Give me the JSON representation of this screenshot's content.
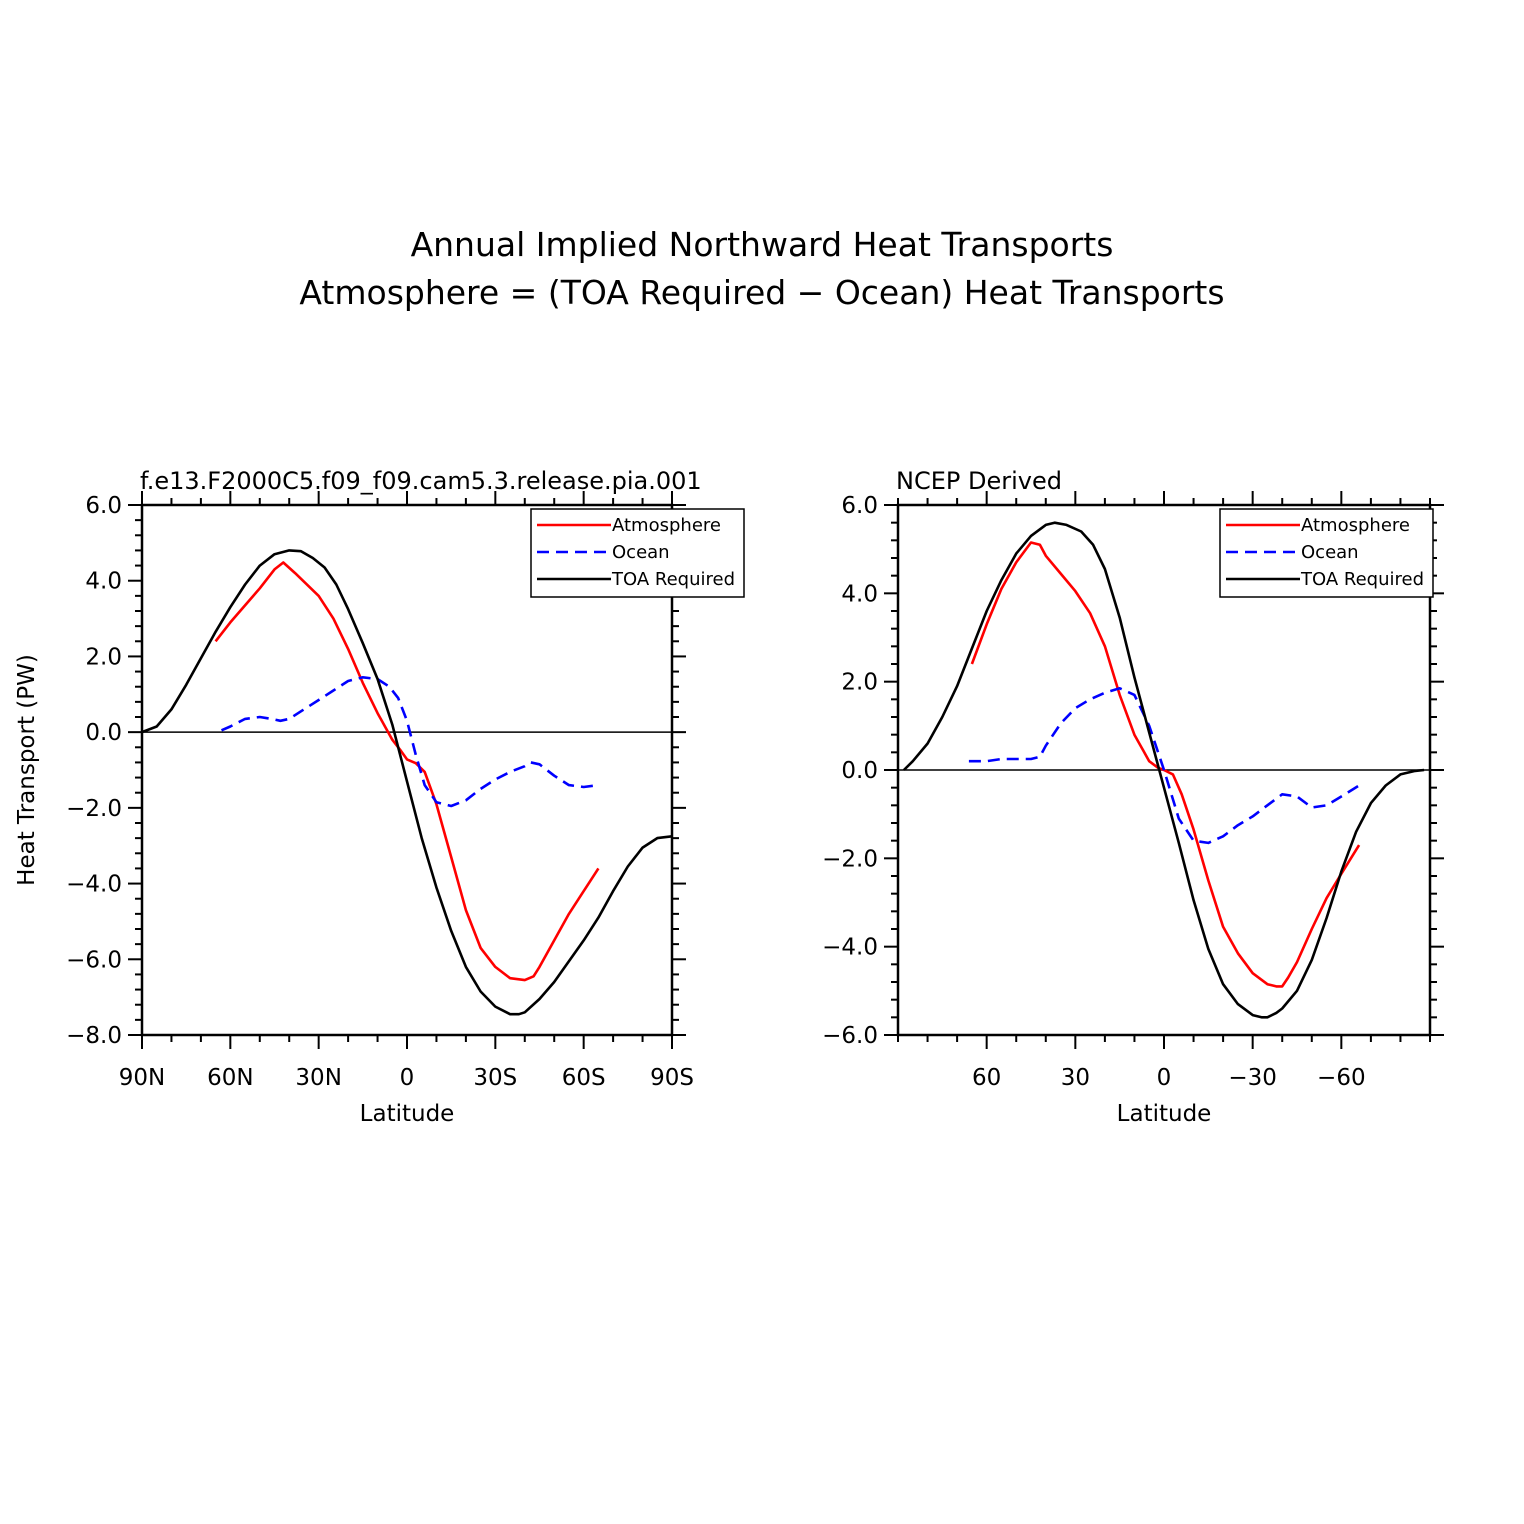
{
  "figure": {
    "title_line1": "Annual Implied Northward Heat Transports",
    "title_line2": "Atmosphere = (TOA Required − Ocean) Heat Transports"
  },
  "chart_data": [
    {
      "type": "line",
      "title": "f.e13.F2000C5.f09_f09.cam5.3.release.pia.001",
      "xlabel": "Latitude",
      "ylabel": "Heat Transport (PW)",
      "xlim": [
        90,
        -90
      ],
      "ylim": [
        -8,
        6
      ],
      "xticks": [
        90,
        60,
        30,
        0,
        -30,
        -60,
        -90
      ],
      "xtick_labels": [
        "90N",
        "60N",
        "30N",
        "0",
        "30S",
        "60S",
        "90S"
      ],
      "yticks": [
        6,
        4,
        2,
        0,
        -2,
        -4,
        -6,
        -8
      ],
      "ytick_labels": [
        "6.0",
        "4.0",
        "2.0",
        "0.0",
        "−2.0",
        "−4.0",
        "−6.0",
        "−8.0"
      ],
      "legend": [
        "Atmosphere",
        "Ocean",
        "TOA Required"
      ],
      "series": [
        {
          "name": "Atmosphere",
          "color": "#ff0000",
          "dash": "solid",
          "x": [
            65,
            60,
            50,
            45,
            42,
            38,
            30,
            25,
            20,
            15,
            10,
            5,
            2,
            0,
            -3,
            -6,
            -10,
            -15,
            -20,
            -25,
            -30,
            -35,
            -40,
            -43,
            -45,
            -50,
            -55,
            -60,
            -65
          ],
          "y": [
            2.4,
            2.9,
            3.8,
            4.3,
            4.48,
            4.2,
            3.6,
            3.0,
            2.2,
            1.3,
            0.5,
            -0.2,
            -0.5,
            -0.72,
            -0.82,
            -1.05,
            -1.9,
            -3.3,
            -4.7,
            -5.7,
            -6.2,
            -6.5,
            -6.55,
            -6.45,
            -6.2,
            -5.5,
            -4.8,
            -4.2,
            -3.6
          ]
        },
        {
          "name": "Ocean",
          "color": "#0000ff",
          "dash": "dashed",
          "x": [
            63,
            60,
            55,
            50,
            46,
            43,
            40,
            35,
            30,
            25,
            20,
            15,
            10,
            6,
            3,
            0,
            -3,
            -6,
            -10,
            -15,
            -20,
            -25,
            -30,
            -35,
            -40,
            -42,
            -45,
            -50,
            -55,
            -60,
            -65
          ],
          "y": [
            0.05,
            0.15,
            0.35,
            0.4,
            0.35,
            0.3,
            0.35,
            0.6,
            0.85,
            1.1,
            1.35,
            1.45,
            1.4,
            1.2,
            0.9,
            0.3,
            -0.6,
            -1.4,
            -1.85,
            -1.95,
            -1.8,
            -1.5,
            -1.25,
            -1.05,
            -0.9,
            -0.8,
            -0.85,
            -1.15,
            -1.4,
            -1.45,
            -1.4
          ]
        },
        {
          "name": "TOA Required",
          "color": "#000000",
          "dash": "solid",
          "x": [
            90,
            85,
            80,
            75,
            70,
            65,
            60,
            55,
            50,
            45,
            40,
            36,
            32,
            28,
            24,
            20,
            15,
            10,
            5,
            0,
            -5,
            -10,
            -15,
            -20,
            -25,
            -30,
            -35,
            -38,
            -40,
            -45,
            -50,
            -55,
            -60,
            -65,
            -70,
            -75,
            -80,
            -85,
            -90
          ],
          "y": [
            0.0,
            0.15,
            0.6,
            1.25,
            1.95,
            2.65,
            3.3,
            3.9,
            4.4,
            4.7,
            4.8,
            4.78,
            4.6,
            4.35,
            3.9,
            3.25,
            2.35,
            1.4,
            0.2,
            -1.3,
            -2.8,
            -4.1,
            -5.25,
            -6.2,
            -6.85,
            -7.25,
            -7.45,
            -7.45,
            -7.4,
            -7.05,
            -6.6,
            -6.05,
            -5.5,
            -4.9,
            -4.2,
            -3.55,
            -3.05,
            -2.8,
            -2.75
          ]
        }
      ]
    },
    {
      "type": "line",
      "title": "NCEP Derived",
      "xlabel": "Latitude",
      "ylabel": "",
      "xlim": [
        90,
        -90
      ],
      "ylim": [
        -6,
        6
      ],
      "xticks": [
        60,
        30,
        0,
        -30,
        -60
      ],
      "xtick_labels": [
        "60",
        "30",
        "0",
        "−30",
        "−60"
      ],
      "yticks": [
        6,
        4,
        2,
        0,
        -2,
        -4,
        -6
      ],
      "ytick_labels": [
        "6.0",
        "4.0",
        "2.0",
        "0.0",
        "−2.0",
        "−4.0",
        "−6.0"
      ],
      "legend": [
        "Atmosphere",
        "Ocean",
        "TOA Required"
      ],
      "series": [
        {
          "name": "Atmosphere",
          "color": "#ff0000",
          "dash": "solid",
          "x": [
            65,
            60,
            55,
            50,
            45,
            42,
            40,
            35,
            30,
            25,
            20,
            15,
            10,
            5,
            2,
            0,
            -3,
            -6,
            -10,
            -15,
            -20,
            -25,
            -30,
            -35,
            -38,
            -40,
            -42,
            -45,
            -50,
            -55,
            -60,
            -66
          ],
          "y": [
            2.4,
            3.3,
            4.1,
            4.7,
            5.15,
            5.1,
            4.85,
            4.45,
            4.05,
            3.55,
            2.8,
            1.7,
            0.8,
            0.2,
            0.05,
            0.0,
            -0.1,
            -0.55,
            -1.35,
            -2.5,
            -3.55,
            -4.15,
            -4.6,
            -4.85,
            -4.9,
            -4.9,
            -4.7,
            -4.35,
            -3.6,
            -2.9,
            -2.35,
            -1.7
          ]
        },
        {
          "name": "Ocean",
          "color": "#0000ff",
          "dash": "dashed",
          "x": [
            66,
            60,
            55,
            50,
            45,
            42,
            40,
            35,
            30,
            25,
            20,
            15,
            10,
            5,
            0,
            -5,
            -10,
            -15,
            -20,
            -25,
            -30,
            -35,
            -40,
            -45,
            -50,
            -55,
            -60,
            -66
          ],
          "y": [
            0.2,
            0.2,
            0.25,
            0.25,
            0.25,
            0.3,
            0.55,
            1.05,
            1.4,
            1.6,
            1.75,
            1.85,
            1.7,
            1.0,
            0.0,
            -1.1,
            -1.6,
            -1.65,
            -1.5,
            -1.25,
            -1.05,
            -0.8,
            -0.55,
            -0.6,
            -0.85,
            -0.8,
            -0.6,
            -0.35
          ]
        },
        {
          "name": "TOA Required",
          "color": "#000000",
          "dash": "solid",
          "x": [
            88,
            85,
            80,
            75,
            70,
            65,
            60,
            55,
            50,
            45,
            40,
            37,
            33,
            28,
            24,
            20,
            15,
            10,
            5,
            0,
            -5,
            -10,
            -15,
            -20,
            -25,
            -30,
            -33,
            -35,
            -38,
            -40,
            -45,
            -50,
            -55,
            -60,
            -65,
            -70,
            -75,
            -80,
            -85,
            -88
          ],
          "y": [
            0.0,
            0.2,
            0.6,
            1.2,
            1.9,
            2.75,
            3.6,
            4.3,
            4.9,
            5.3,
            5.55,
            5.6,
            5.55,
            5.4,
            5.1,
            4.55,
            3.45,
            2.1,
            0.85,
            -0.4,
            -1.65,
            -2.95,
            -4.05,
            -4.85,
            -5.3,
            -5.55,
            -5.6,
            -5.6,
            -5.5,
            -5.4,
            -5.0,
            -4.3,
            -3.35,
            -2.3,
            -1.4,
            -0.75,
            -0.35,
            -0.1,
            -0.02,
            0.0
          ]
        }
      ]
    }
  ]
}
